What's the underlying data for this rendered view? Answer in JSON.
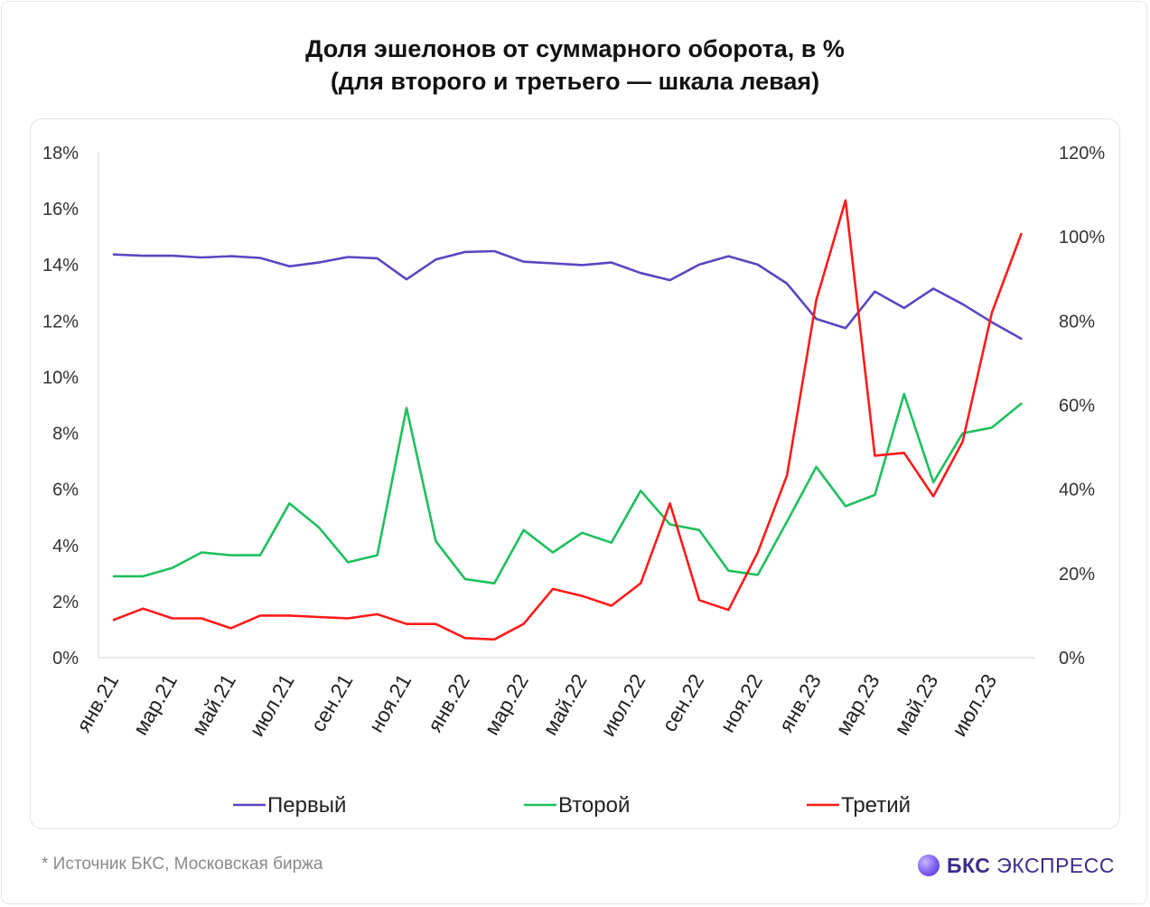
{
  "title_line1": "Доля эшелонов от суммарного оборота, в %",
  "title_line2": "(для второго и третьего — шкала левая)",
  "footnote": "*  Источник БКС, Московская биржа",
  "brand": {
    "strong": "БКС",
    "rest": " ЭКСПРЕСС"
  },
  "chart_data": {
    "type": "line",
    "title": "Доля эшелонов от суммарного оборота, в % (для второго и третьего — шкала левая)",
    "x_tick_labels": [
      "янв.21",
      "мар.21",
      "май.21",
      "июл.21",
      "сен.21",
      "ноя.21",
      "янв.22",
      "мар.22",
      "май.22",
      "июл.22",
      "сен.22",
      "ноя.22",
      "янв.23",
      "мар.23",
      "май.23",
      "июл.23"
    ],
    "x": [
      "янв.21",
      "фев.21",
      "мар.21",
      "апр.21",
      "май.21",
      "июн.21",
      "июл.21",
      "авг.21",
      "сен.21",
      "окт.21",
      "ноя.21",
      "дек.21",
      "янв.22",
      "фев.22",
      "мар.22",
      "апр.22",
      "май.22",
      "июн.22",
      "июл.22",
      "авг.22",
      "сен.22",
      "окт.22",
      "ноя.22",
      "дек.22",
      "янв.23",
      "фев.23",
      "мар.23",
      "апр.23",
      "май.23",
      "июн.23",
      "июл.23",
      "авг.23"
    ],
    "left_axis": {
      "ylim": [
        0,
        18
      ],
      "ticks": [
        "0%",
        "2%",
        "4%",
        "6%",
        "8%",
        "10%",
        "12%",
        "14%",
        "16%",
        "18%"
      ]
    },
    "right_axis": {
      "ylim": [
        0,
        120
      ],
      "ticks": [
        "0%",
        "20%",
        "40%",
        "60%",
        "80%",
        "100%",
        "120%"
      ]
    },
    "grid": false,
    "legend_position": "bottom",
    "series": [
      {
        "name": "Первый",
        "axis": "right",
        "color": "#5b45c2",
        "values": [
          95.8,
          95.5,
          95.5,
          95.1,
          95.4,
          95.0,
          93.0,
          93.9,
          95.2,
          94.9,
          89.9,
          94.6,
          96.4,
          96.6,
          94.1,
          93.7,
          93.3,
          93.9,
          91.4,
          89.7,
          93.4,
          95.4,
          93.4,
          88.9,
          80.5,
          78.3,
          87.0,
          83.1,
          87.7,
          84.0,
          79.7,
          75.8
        ]
      },
      {
        "name": "Второй",
        "axis": "left",
        "color": "#1fbf5e",
        "values": [
          2.9,
          2.9,
          3.2,
          3.75,
          3.65,
          3.65,
          5.5,
          4.65,
          3.4,
          3.65,
          8.9,
          4.15,
          2.8,
          2.65,
          4.55,
          3.75,
          4.45,
          4.1,
          5.95,
          4.75,
          4.55,
          3.1,
          2.95,
          4.85,
          6.8,
          5.4,
          5.8,
          9.4,
          6.25,
          8.0,
          8.2,
          9.05
        ]
      },
      {
        "name": "Третий",
        "axis": "left",
        "color": "#ff1a1a",
        "values": [
          1.35,
          1.75,
          1.4,
          1.4,
          1.05,
          1.5,
          1.5,
          1.45,
          1.4,
          1.55,
          1.2,
          1.2,
          0.7,
          0.65,
          1.2,
          2.45,
          2.2,
          1.85,
          2.65,
          5.5,
          2.05,
          1.7,
          3.75,
          6.5,
          12.75,
          16.3,
          7.2,
          7.3,
          5.75,
          7.7,
          12.3,
          15.1
        ]
      }
    ]
  }
}
